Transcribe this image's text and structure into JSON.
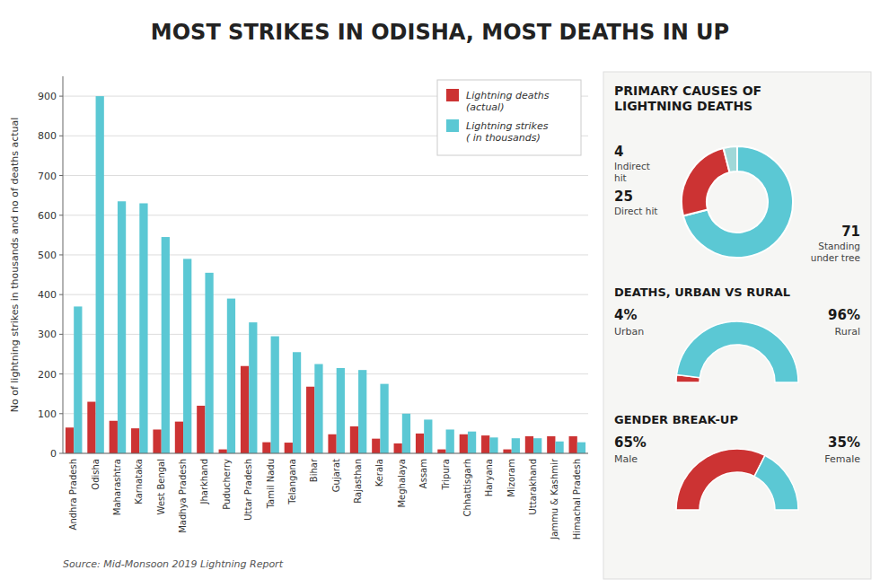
{
  "chart_data": [
    {
      "type": "bar",
      "title": "MOST STRIKES IN ODISHA, MOST DEATHS IN UP",
      "categories": [
        "Andhra Pradesh",
        "Odisha",
        "Maharashtra",
        "Karnataka",
        "West Bengal",
        "Madhya Pradesh",
        "Jharkhand",
        "Puducherry",
        "Uttar Pradesh",
        "Tamil Nadu",
        "Telangana",
        "Bihar",
        "Gujarat",
        "Rajasthan",
        "Kerala",
        "Meghalaya",
        "Assam",
        "Tripura",
        "Chhattisgarh",
        "Haryana",
        "Mizoram",
        "Uttarakhand",
        "Jammu & Kashmir",
        "Himachal Pradesh"
      ],
      "series": [
        {
          "name": "Lightning deaths\n(actual)",
          "color": "#cc3333",
          "values": [
            65,
            130,
            82,
            63,
            60,
            80,
            120,
            10,
            220,
            28,
            27,
            168,
            48,
            68,
            37,
            25,
            50,
            10,
            48,
            45,
            10,
            43,
            43,
            43
          ]
        },
        {
          "name": "Lightning strikes\n( in thousands)",
          "color": "#5bc8d4",
          "values": [
            370,
            900,
            635,
            630,
            545,
            490,
            455,
            390,
            330,
            295,
            255,
            225,
            215,
            210,
            175,
            100,
            85,
            60,
            55,
            40,
            38,
            38,
            30,
            28
          ]
        }
      ],
      "y_label": "No of lightning strikes in thousands and no of deaths actual",
      "ylim": [
        0,
        950
      ],
      "yticks": [
        0,
        100,
        200,
        300,
        400,
        500,
        600,
        700,
        800,
        900
      ],
      "grid": true,
      "legend": "upper right",
      "annotations": [
        "Source: Mid-Monsoon 2019 Lightning Report"
      ]
    },
    {
      "type": "donut",
      "title": "PRIMARY CAUSES OF\nLIGHTNING DEATHS",
      "categories": [
        "Standing\nunder tree",
        "Direct hit",
        "Indirect\nhit"
      ],
      "values": [
        71,
        25,
        4
      ],
      "colors": [
        "#5bc8d4",
        "#cc3333",
        "#a0d8d8"
      ],
      "data_labels": true
    },
    {
      "type": "semicircle",
      "title": "DEATHS, URBAN VS RURAL",
      "categories": [
        "Urban",
        "Rural"
      ],
      "values": [
        4,
        96
      ],
      "value_labels": [
        "4%",
        "96%"
      ],
      "colors": [
        "#cc3333",
        "#5bc8d4"
      ],
      "data_labels": true
    },
    {
      "type": "semicircle",
      "title": "GENDER BREAK-UP",
      "categories": [
        "Male",
        "Female"
      ],
      "values": [
        65,
        35
      ],
      "value_labels": [
        "65%",
        "35%"
      ],
      "colors": [
        "#cc3333",
        "#5bc8d4"
      ],
      "data_labels": true
    }
  ]
}
